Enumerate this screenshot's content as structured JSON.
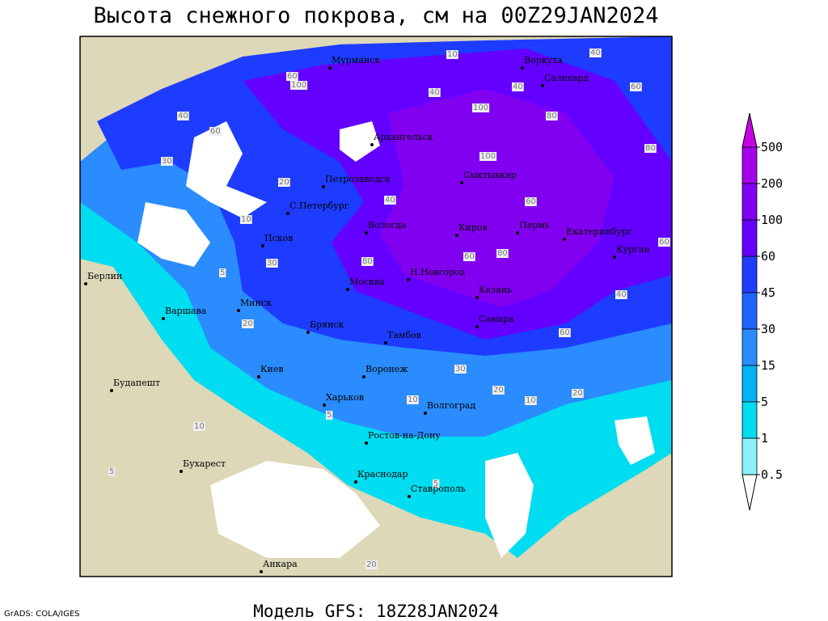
{
  "title": "Высота снежного покрова, см на 00Z29JAN2024",
  "subtitle": "Модель GFS: 18Z28JAN2024",
  "credit": "GrADS: COLA/IGES",
  "colorbar": {
    "levels": [
      500,
      200,
      100,
      60,
      45,
      30,
      15,
      5,
      1,
      0.5
    ],
    "colors": [
      "#c800e6",
      "#a500ec",
      "#8200f0",
      "#6400ff",
      "#1e3cff",
      "#1e64ff",
      "#2a8cff",
      "#00b4f5",
      "#00dcf0",
      "#8cf2fa",
      "#ffffff"
    ]
  },
  "cities": [
    "Мурманск",
    "Воркута",
    "Салехард",
    "Архангельск",
    "Сыктывкар",
    "Петрозаводск",
    "С.Петербург",
    "Псков",
    "Вологда",
    "Киров",
    "Пермь",
    "Екатеринбург",
    "Курган",
    "Берлин",
    "Н.Новгород",
    "Москва",
    "Казань",
    "Минск",
    "Варшава",
    "Брянск",
    "Самара",
    "Тамбов",
    "Воронеж",
    "Киев",
    "Будапешт",
    "Харьков",
    "Волгоград",
    "Ростов-на-Дону",
    "Бухарест",
    "Краснодар",
    "Ставрополь",
    "Анкара"
  ],
  "contour_labels": [
    10,
    40,
    60,
    100,
    40,
    60,
    100,
    40,
    80,
    60,
    30,
    20,
    10,
    80,
    60,
    100,
    80,
    40,
    60,
    40,
    20,
    30,
    60,
    5,
    20,
    30,
    10,
    5,
    10,
    20,
    5,
    10,
    5,
    20,
    40,
    80,
    60
  ]
}
